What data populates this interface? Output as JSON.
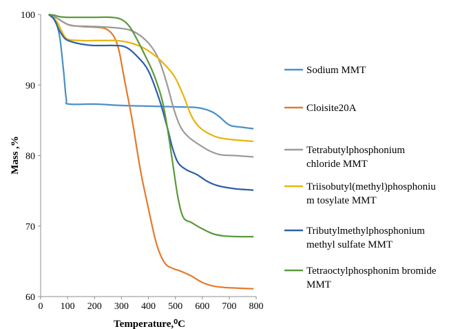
{
  "chart_data": {
    "type": "line",
    "xlabel": "Temperature,⁰C",
    "ylabel": "Mass ,%",
    "xlim": [
      0,
      800
    ],
    "ylim": [
      60,
      100
    ],
    "x_ticks": [
      "0",
      "100",
      "200",
      "300",
      "400",
      "500",
      "600",
      "700",
      "800"
    ],
    "y_ticks": [
      "60",
      "70",
      "80",
      "90",
      "100"
    ],
    "grid": false,
    "legend_position": "right",
    "series": [
      {
        "name": "Sodium MMT",
        "color": "#4a90c8",
        "legend_lines": [
          "Sodium MMT"
        ],
        "points": [
          [
            30,
            100
          ],
          [
            50,
            99.5
          ],
          [
            70,
            97
          ],
          [
            85,
            92
          ],
          [
            95,
            88
          ],
          [
            105,
            87.3
          ],
          [
            200,
            87.3
          ],
          [
            300,
            87.1
          ],
          [
            400,
            87
          ],
          [
            500,
            86.9
          ],
          [
            580,
            86.8
          ],
          [
            630,
            86.3
          ],
          [
            660,
            85.6
          ],
          [
            690,
            84.6
          ],
          [
            710,
            84.2
          ],
          [
            750,
            84
          ],
          [
            790,
            83.8
          ]
        ]
      },
      {
        "name": "Cloisite20A",
        "color": "#e57a2e",
        "legend_lines": [
          "Cloisite20A"
        ],
        "points": [
          [
            30,
            100
          ],
          [
            60,
            99.5
          ],
          [
            100,
            98.6
          ],
          [
            150,
            98.3
          ],
          [
            200,
            98.2
          ],
          [
            240,
            98
          ],
          [
            270,
            97
          ],
          [
            290,
            95
          ],
          [
            310,
            91
          ],
          [
            340,
            85
          ],
          [
            370,
            78
          ],
          [
            400,
            72.5
          ],
          [
            430,
            67.5
          ],
          [
            460,
            64.8
          ],
          [
            490,
            64
          ],
          [
            520,
            63.6
          ],
          [
            560,
            62.9
          ],
          [
            600,
            62
          ],
          [
            640,
            61.5
          ],
          [
            680,
            61.3
          ],
          [
            730,
            61.2
          ],
          [
            790,
            61.1
          ]
        ]
      },
      {
        "name": "Tetrabutylphosphonium chloride MMT",
        "color": "#9b9b9b",
        "legend_lines": [
          "Tetrabutylphosphonium",
          "chloride MMT"
        ],
        "points": [
          [
            30,
            100
          ],
          [
            60,
            99.5
          ],
          [
            90,
            98.8
          ],
          [
            120,
            98.4
          ],
          [
            200,
            98.3
          ],
          [
            280,
            98.1
          ],
          [
            330,
            97.8
          ],
          [
            370,
            97
          ],
          [
            410,
            95.5
          ],
          [
            440,
            93.5
          ],
          [
            470,
            90
          ],
          [
            495,
            86.5
          ],
          [
            520,
            84
          ],
          [
            550,
            82.6
          ],
          [
            590,
            81.5
          ],
          [
            630,
            80.6
          ],
          [
            670,
            80.1
          ],
          [
            720,
            80
          ],
          [
            790,
            79.8
          ]
        ]
      },
      {
        "name": "Triisobutyl(methyl)phosphonium tosylate MMT",
        "color": "#e8b40f",
        "legend_lines": [
          "Triisobutyl(methyl)phosphoniu",
          "m tosylate MMT"
        ],
        "points": [
          [
            30,
            100
          ],
          [
            60,
            99
          ],
          [
            80,
            97.5
          ],
          [
            100,
            96.5
          ],
          [
            150,
            96.3
          ],
          [
            200,
            96.3
          ],
          [
            240,
            96.3
          ],
          [
            280,
            96.3
          ],
          [
            330,
            96
          ],
          [
            380,
            95.3
          ],
          [
            430,
            94
          ],
          [
            470,
            92.5
          ],
          [
            500,
            91
          ],
          [
            530,
            88.5
          ],
          [
            560,
            85.6
          ],
          [
            590,
            84
          ],
          [
            630,
            83
          ],
          [
            680,
            82.4
          ],
          [
            790,
            82
          ]
        ]
      },
      {
        "name": "Tributylmethylphosphonium methyl sulfate MMT",
        "color": "#2e5fa8",
        "legend_lines": [
          "Tributylmethylphosphonium",
          "methyl sulfate MMT"
        ],
        "points": [
          [
            30,
            100
          ],
          [
            50,
            99.3
          ],
          [
            70,
            97.7
          ],
          [
            90,
            96.6
          ],
          [
            110,
            96.2
          ],
          [
            150,
            95.8
          ],
          [
            200,
            95.6
          ],
          [
            280,
            95.6
          ],
          [
            320,
            95.3
          ],
          [
            360,
            94
          ],
          [
            400,
            92
          ],
          [
            440,
            88
          ],
          [
            470,
            84
          ],
          [
            490,
            81
          ],
          [
            510,
            79
          ],
          [
            540,
            78
          ],
          [
            580,
            77.3
          ],
          [
            620,
            76.3
          ],
          [
            660,
            75.7
          ],
          [
            720,
            75.3
          ],
          [
            790,
            75.1
          ]
        ]
      },
      {
        "name": "Tetraoctylphosphonim bromide MMT",
        "color": "#5a9a3c",
        "legend_lines": [
          "Tetraoctylphosphonim bromide",
          "MMT"
        ],
        "points": [
          [
            30,
            100
          ],
          [
            50,
            99.9
          ],
          [
            70,
            99.7
          ],
          [
            100,
            99.6
          ],
          [
            150,
            99.6
          ],
          [
            200,
            99.6
          ],
          [
            260,
            99.6
          ],
          [
            300,
            99.3
          ],
          [
            330,
            98.3
          ],
          [
            360,
            96.3
          ],
          [
            390,
            94
          ],
          [
            420,
            91.5
          ],
          [
            450,
            88
          ],
          [
            470,
            84
          ],
          [
            490,
            79
          ],
          [
            510,
            74
          ],
          [
            530,
            71.2
          ],
          [
            560,
            70.5
          ],
          [
            600,
            69.6
          ],
          [
            640,
            68.9
          ],
          [
            680,
            68.6
          ],
          [
            740,
            68.5
          ],
          [
            790,
            68.5
          ]
        ]
      }
    ]
  }
}
